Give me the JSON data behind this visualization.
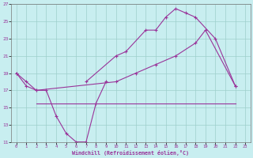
{
  "xlabel": "Windchill (Refroidissement éolien,°C)",
  "bg_color": "#c8eef0",
  "grid_color": "#9ecfcc",
  "line_color": "#993399",
  "xlim": [
    -0.5,
    23.5
  ],
  "ylim": [
    11,
    27
  ],
  "xticks": [
    0,
    1,
    2,
    3,
    4,
    5,
    6,
    7,
    8,
    9,
    10,
    11,
    12,
    13,
    14,
    15,
    16,
    17,
    18,
    19,
    20,
    21,
    22,
    23
  ],
  "yticks": [
    11,
    13,
    15,
    17,
    19,
    21,
    23,
    25,
    27
  ],
  "s1x": [
    0,
    1,
    2,
    3,
    4,
    5,
    6,
    7,
    8,
    9
  ],
  "s1y": [
    19,
    18,
    17,
    17,
    14,
    12,
    11,
    11,
    15.5,
    18
  ],
  "s2x": [
    7,
    10,
    11,
    13,
    14,
    15,
    16,
    17,
    18,
    20,
    22
  ],
  "s2y": [
    18,
    21,
    21.5,
    24,
    24,
    25.5,
    26.5,
    26,
    25.5,
    23,
    17.5
  ],
  "s3x": [
    0,
    1,
    2,
    10,
    12,
    14,
    16,
    18,
    19,
    22
  ],
  "s3y": [
    19,
    17.5,
    17,
    18,
    19,
    20,
    21,
    22.5,
    24,
    17.5
  ],
  "s4x": [
    2,
    3,
    4,
    5,
    6,
    7,
    8,
    9,
    10,
    11,
    12,
    13,
    14,
    15,
    16,
    17,
    18,
    19,
    20,
    21,
    22
  ],
  "s4y": [
    15.5,
    15.5,
    15.5,
    15.5,
    15.5,
    15.5,
    15.5,
    15.5,
    15.5,
    15.5,
    15.5,
    15.5,
    15.5,
    15.5,
    15.5,
    15.5,
    15.5,
    15.5,
    15.5,
    15.5,
    15.5
  ]
}
